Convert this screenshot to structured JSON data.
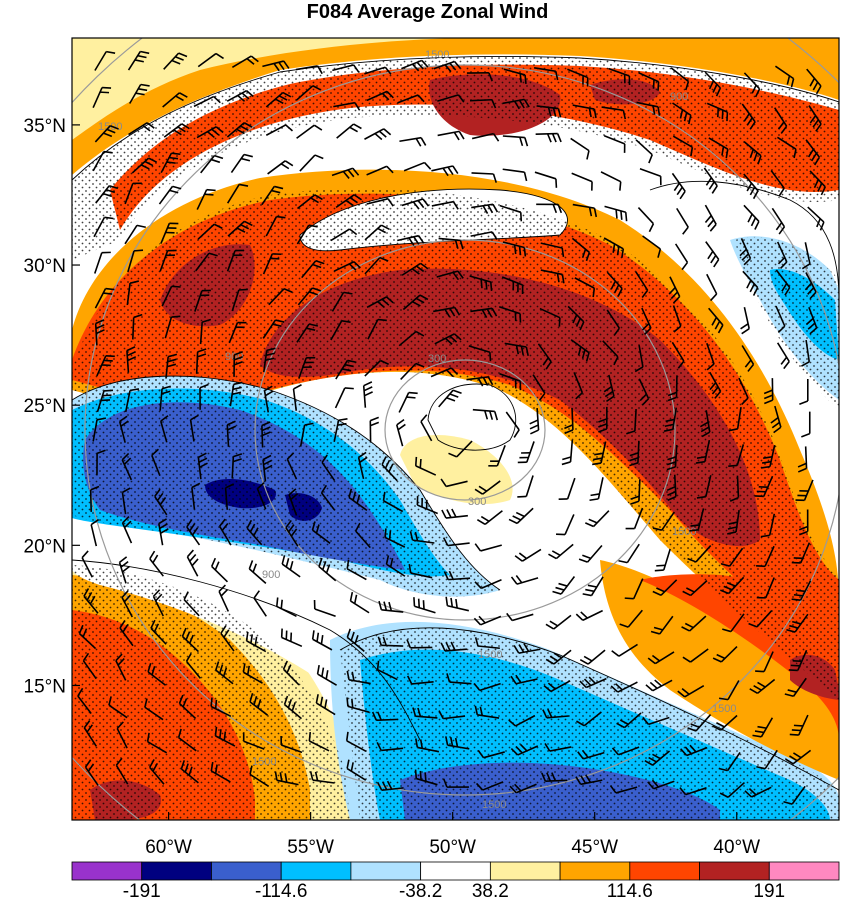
{
  "chart_data": {
    "type": "heatmap",
    "title": "F084 Average Zonal Wind",
    "y_ticks": [
      "35°N",
      "30°N",
      "25°N",
      "20°N",
      "15°N"
    ],
    "y_tick_values": [
      35,
      30,
      25,
      20,
      15
    ],
    "x_ticks": [
      "60°W",
      "55°W",
      "50°W",
      "45°W",
      "40°W"
    ],
    "x_tick_values": [
      -60,
      -55,
      -50,
      -45,
      -40
    ],
    "lon_range": [
      -63.4,
      -36.4
    ],
    "lat_range": [
      10.2,
      38.1
    ],
    "colorbar": {
      "labels": [
        "-191",
        "-114.6",
        "-38.2",
        "38.2",
        "114.6",
        "191"
      ],
      "boundaries": [
        -191,
        -152.8,
        -114.6,
        -76.4,
        -38.2,
        0,
        38.2,
        76.4,
        114.6,
        152.8,
        191
      ],
      "colors": [
        "#9932cc",
        "#000080",
        "#3a5fcd",
        "#00bfff",
        "#b0e2ff",
        "#ffffff",
        "#fff0a0",
        "#ffa500",
        "#ff4500",
        "#b22222",
        "#ff88c0"
      ]
    },
    "contour_labels": [
      "1500",
      "1500",
      "900",
      "900",
      "300",
      "300",
      "900",
      "1500",
      "1500",
      "1500",
      "1500",
      "1500"
    ],
    "pattern": "stippled where significant",
    "vectors": "wind barbs"
  }
}
